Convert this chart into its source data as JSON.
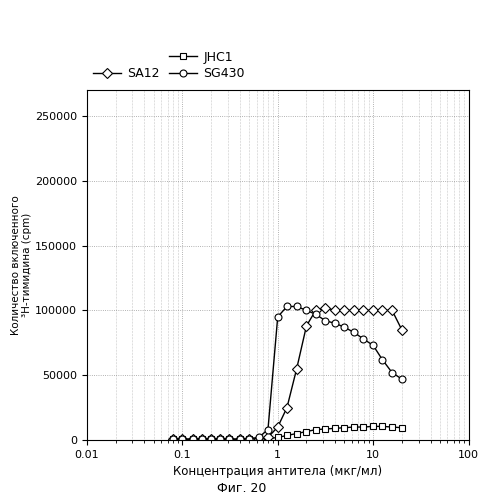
{
  "title": "",
  "xlabel": "Концентрация антитела (мкг/мл)",
  "ylabel_line1": "Количество включенного",
  "ylabel_line2": "³H-тимидина (cpm)",
  "caption": "Фиг. 20",
  "xlim": [
    0.01,
    100
  ],
  "ylim": [
    0,
    270000
  ],
  "yticks": [
    0,
    50000,
    100000,
    150000,
    200000,
    250000
  ],
  "ytick_labels": [
    "0",
    "50000",
    "100000",
    "150000",
    "200000",
    "250000"
  ],
  "xticks": [
    0.01,
    0.1,
    1,
    10,
    100
  ],
  "xtick_labels": [
    "0.01",
    "0.1",
    "1",
    "10",
    "100"
  ],
  "series": {
    "JHC1": {
      "x": [
        0.08,
        0.1,
        0.13,
        0.16,
        0.2,
        0.25,
        0.31,
        0.4,
        0.5,
        0.63,
        0.79,
        1.0,
        1.25,
        1.58,
        2.0,
        2.5,
        3.16,
        4.0,
        5.0,
        6.3,
        7.9,
        10.0,
        12.5,
        15.8,
        20.0
      ],
      "y": [
        500,
        500,
        500,
        500,
        500,
        500,
        500,
        500,
        500,
        800,
        1000,
        2000,
        3500,
        5000,
        6500,
        8000,
        8500,
        9000,
        9500,
        10000,
        10000,
        10500,
        10500,
        10000,
        9500
      ],
      "marker": "s",
      "label": "JHC1"
    },
    "SA12": {
      "x": [
        0.08,
        0.1,
        0.13,
        0.16,
        0.2,
        0.25,
        0.31,
        0.4,
        0.5,
        0.63,
        0.79,
        1.0,
        1.25,
        1.58,
        2.0,
        2.5,
        3.16,
        4.0,
        5.0,
        6.3,
        7.9,
        10.0,
        12.5,
        15.8,
        20.0
      ],
      "y": [
        500,
        500,
        500,
        500,
        500,
        500,
        500,
        500,
        500,
        1000,
        2000,
        10000,
        25000,
        55000,
        88000,
        100000,
        102000,
        100000,
        100000,
        100000,
        100000,
        100000,
        100000,
        100000,
        85000
      ],
      "marker": "D",
      "label": "SA12"
    },
    "SG430": {
      "x": [
        0.08,
        0.1,
        0.13,
        0.16,
        0.2,
        0.25,
        0.31,
        0.4,
        0.5,
        0.63,
        0.79,
        1.0,
        1.25,
        1.58,
        2.0,
        2.5,
        3.16,
        4.0,
        5.0,
        6.3,
        7.9,
        10.0,
        12.5,
        15.8,
        20.0
      ],
      "y": [
        500,
        500,
        500,
        500,
        500,
        500,
        500,
        500,
        1000,
        2000,
        8000,
        95000,
        103000,
        103000,
        100000,
        97000,
        92000,
        90000,
        87000,
        83000,
        78000,
        73000,
        62000,
        52000,
        47000
      ],
      "marker": "o",
      "label": "SG430"
    }
  },
  "line_color": "#000000",
  "background_color": "#ffffff",
  "grid_color": "#999999",
  "marker_size": 5,
  "line_width": 1.0
}
